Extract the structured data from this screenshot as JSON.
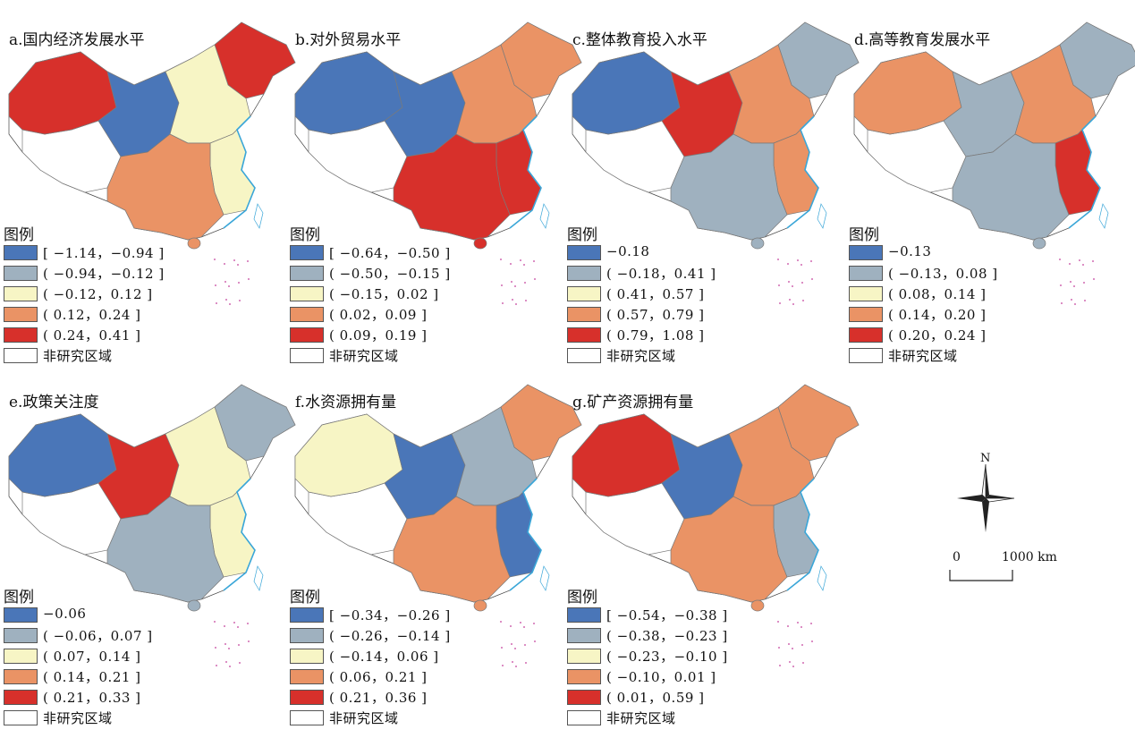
{
  "panels": [
    {
      "id": "a",
      "title": "a.国内经济发展水平",
      "legend_title": "图例",
      "legend": [
        "[ −1.14，−0.94 ]",
        "( −0.94，−0.12 ]",
        "( −0.12，0.12 ]",
        "( 0.12，0.24 ]",
        "( 0.24，0.41 ]",
        "非研究区域"
      ],
      "region_classes": {
        "xj": 4,
        "nw": 0,
        "mid": 2,
        "ne": 4,
        "south": 3,
        "east": 2
      }
    },
    {
      "id": "b",
      "title": "b.对外贸易水平",
      "legend_title": "图例",
      "legend": [
        "[ −0.64，−0.50 ]",
        "( −0.50，−0.15 ]",
        "( −0.15，0.02 ]",
        "( 0.02，0.09 ]",
        "( 0.09，0.19 ]",
        "非研究区域"
      ],
      "region_classes": {
        "xj": 0,
        "nw": 0,
        "mid": 3,
        "ne": 3,
        "south": 4,
        "east": 4
      }
    },
    {
      "id": "c",
      "title": "c.整体教育投入水平",
      "legend_title": "图例",
      "legend": [
        "−0.18",
        "( −0.18，0.41 ]",
        "( 0.41，0.57 ]",
        "( 0.57，0.79 ]",
        "( 0.79，1.08 ]",
        "非研究区域"
      ],
      "region_classes": {
        "xj": 0,
        "nw": 4,
        "mid": 3,
        "ne": 1,
        "south": 1,
        "east": 3
      }
    },
    {
      "id": "d",
      "title": "d.高等教育发展水平",
      "legend_title": "图例",
      "legend": [
        "−0.13",
        "( −0.13，0.08 ]",
        "( 0.08，0.14 ]",
        "( 0.14，0.20 ]",
        "( 0.20，0.24 ]",
        "非研究区域"
      ],
      "region_classes": {
        "xj": 3,
        "nw": 1,
        "mid": 3,
        "ne": 1,
        "south": 1,
        "east": 4
      }
    },
    {
      "id": "e",
      "title": "e.政策关注度",
      "legend_title": "图例",
      "legend": [
        "−0.06",
        "( −0.06，0.07 ]",
        "( 0.07，0.14 ]",
        "( 0.14，0.21 ]",
        "( 0.21，0.33 ]",
        "非研究区域"
      ],
      "region_classes": {
        "xj": 0,
        "nw": 4,
        "mid": 2,
        "ne": 1,
        "south": 1,
        "east": 2
      }
    },
    {
      "id": "f",
      "title": "f.水资源拥有量",
      "legend_title": "图例",
      "legend": [
        "[ −0.34，−0.26 ]",
        "( −0.26，−0.14 ]",
        "( −0.14，0.06 ]",
        "( 0.06，0.21 ]",
        "( 0.21，0.36 ]",
        "非研究区域"
      ],
      "region_classes": {
        "xj": 2,
        "nw": 0,
        "mid": 1,
        "ne": 3,
        "south": 3,
        "east": 0
      }
    },
    {
      "id": "g",
      "title": "g.矿产资源拥有量",
      "legend_title": "图例",
      "legend": [
        "[ −0.54，−0.38 ]",
        "( −0.38，−0.23 ]",
        "( −0.23，−0.10 ]",
        "( −0.10，0.01 ]",
        "( 0.01，0.59 ]",
        "非研究区域"
      ],
      "region_classes": {
        "xj": 4,
        "nw": 0,
        "mid": 3,
        "ne": 3,
        "south": 3,
        "east": 1
      }
    }
  ],
  "class_colors": [
    "#4a76b8",
    "#9fb1bf",
    "#f7f5c5",
    "#ea9365",
    "#d7302b",
    "#ffffff"
  ],
  "compass": {
    "label": "N"
  },
  "scale": {
    "start_label": "0",
    "end_label": "1000 km"
  }
}
